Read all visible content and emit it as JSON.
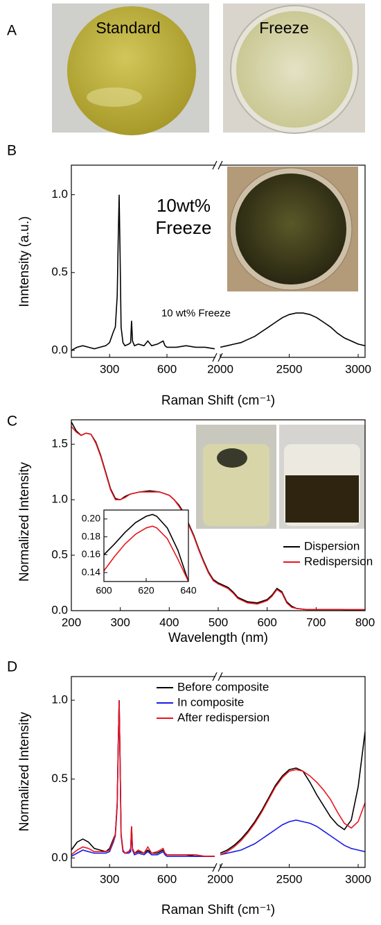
{
  "figure": {
    "panel_labels": [
      "A",
      "B",
      "C",
      "D"
    ],
    "photo_captions": [
      "Standard",
      "Freeze"
    ]
  },
  "chart_data": [
    {
      "type": "line",
      "y_label": "Inntensity (a.u.)",
      "x_label": "Raman Shift (cm⁻¹)",
      "annotations": [
        "10wt%",
        "Freeze",
        "10 wt% Freeze"
      ],
      "x_segments": [
        {
          "xlim": [
            100,
            850
          ],
          "xticks": [
            300,
            600
          ]
        },
        {
          "xlim": [
            2000,
            3050
          ],
          "xticks": [
            2000,
            2500,
            3000
          ]
        }
      ],
      "ylim": [
        -0.045,
        1.19
      ],
      "yticks": [
        {
          "value": 0,
          "label": "0.0"
        },
        {
          "value": 0.5,
          "label": "0.5"
        },
        {
          "value": 1,
          "label": "1.0"
        }
      ],
      "x": [
        100,
        130,
        160,
        190,
        220,
        250,
        280,
        300,
        320,
        330,
        340,
        345,
        350,
        355,
        360,
        370,
        380,
        400,
        410,
        415,
        420,
        430,
        450,
        480,
        500,
        520,
        550,
        580,
        590,
        600,
        650,
        700,
        750,
        800,
        850,
        2000,
        2050,
        2100,
        2150,
        2200,
        2250,
        2300,
        2350,
        2400,
        2450,
        2500,
        2550,
        2600,
        2650,
        2700,
        2750,
        2800,
        2850,
        2900,
        2950,
        3000,
        3050
      ],
      "color": "#000000",
      "values": [
        0.0,
        0.02,
        0.03,
        0.02,
        0.01,
        0.02,
        0.03,
        0.05,
        0.12,
        0.15,
        0.35,
        0.7,
        1.0,
        0.6,
        0.15,
        0.05,
        0.03,
        0.04,
        0.05,
        0.19,
        0.06,
        0.03,
        0.04,
        0.03,
        0.06,
        0.03,
        0.04,
        0.06,
        0.03,
        0.02,
        0.02,
        0.03,
        0.02,
        0.02,
        0.01,
        0.02,
        0.03,
        0.04,
        0.05,
        0.07,
        0.09,
        0.12,
        0.15,
        0.18,
        0.21,
        0.23,
        0.24,
        0.24,
        0.23,
        0.21,
        0.18,
        0.15,
        0.11,
        0.08,
        0.06,
        0.04,
        0.03
      ]
    },
    {
      "type": "line",
      "y_label": "Normalized Intensity",
      "x_label": "Wavelength (nm)",
      "legend": "lower right",
      "xlim": [
        200,
        800
      ],
      "xticks": [
        200,
        300,
        400,
        500,
        600,
        700,
        800
      ],
      "ylim": [
        0,
        1.72
      ],
      "yticks": [
        {
          "value": 0,
          "label": "0.0"
        },
        {
          "value": 0.5,
          "label": "0.5"
        },
        {
          "value": 1,
          "label": "1.0"
        },
        {
          "value": 1.5,
          "label": "1.5"
        }
      ],
      "x": [
        200,
        210,
        220,
        230,
        240,
        250,
        260,
        270,
        280,
        290,
        300,
        310,
        320,
        340,
        360,
        380,
        400,
        410,
        420,
        430,
        440,
        450,
        460,
        470,
        480,
        490,
        500,
        510,
        520,
        530,
        540,
        560,
        580,
        600,
        610,
        620,
        630,
        640,
        650,
        660,
        680,
        700,
        750,
        800
      ],
      "series": [
        {
          "name": "Dispersion",
          "color": "#000000",
          "values": [
            1.7,
            1.62,
            1.58,
            1.6,
            1.59,
            1.52,
            1.4,
            1.25,
            1.1,
            1.01,
            1.0,
            1.03,
            1.05,
            1.07,
            1.08,
            1.07,
            1.04,
            1.0,
            0.95,
            0.88,
            0.78,
            0.68,
            0.56,
            0.45,
            0.35,
            0.28,
            0.25,
            0.23,
            0.21,
            0.17,
            0.12,
            0.08,
            0.07,
            0.1,
            0.14,
            0.2,
            0.17,
            0.08,
            0.04,
            0.02,
            0.01,
            0.01,
            0.01,
            0.0
          ]
        },
        {
          "name": "Redispersion",
          "color": "#e8141c",
          "values": [
            1.66,
            1.61,
            1.58,
            1.6,
            1.59,
            1.51,
            1.39,
            1.24,
            1.09,
            1.0,
            1.0,
            1.02,
            1.05,
            1.07,
            1.07,
            1.07,
            1.04,
            1.0,
            0.94,
            0.87,
            0.77,
            0.67,
            0.55,
            0.44,
            0.34,
            0.27,
            0.24,
            0.22,
            0.2,
            0.16,
            0.11,
            0.07,
            0.06,
            0.09,
            0.13,
            0.19,
            0.16,
            0.07,
            0.03,
            0.02,
            0.01,
            0.01,
            0.01,
            0.01
          ]
        }
      ]
    },
    {
      "type": "line",
      "xlim": [
        600,
        640
      ],
      "xticks": [
        600,
        620,
        640
      ],
      "ylim": [
        0.13,
        0.21
      ],
      "yticks": [
        0.14,
        0.16,
        0.18,
        {
          "value": 0.2,
          "label": "0.20"
        }
      ],
      "x": [
        600,
        605,
        610,
        615,
        620,
        623,
        625,
        630,
        635,
        640
      ],
      "series": [
        {
          "color": "#000000",
          "values": [
            0.16,
            0.172,
            0.185,
            0.196,
            0.203,
            0.205,
            0.203,
            0.19,
            0.165,
            0.13
          ]
        },
        {
          "color": "#e8141c",
          "values": [
            0.142,
            0.158,
            0.172,
            0.183,
            0.19,
            0.192,
            0.19,
            0.178,
            0.155,
            0.13
          ]
        }
      ]
    },
    {
      "type": "line",
      "y_label": "Normalized Intensity",
      "x_label": "Raman Shift (cm⁻¹)",
      "legend": "upper center",
      "x_segments": [
        {
          "xlim": [
            100,
            850
          ],
          "xticks": [
            300,
            600
          ]
        },
        {
          "xlim": [
            2000,
            3050
          ],
          "xticks": [
            2000,
            2500,
            3000
          ]
        }
      ],
      "ylim": [
        -0.06,
        1.15
      ],
      "yticks": [
        {
          "value": 0,
          "label": "0.0"
        },
        {
          "value": 0.5,
          "label": "0.5"
        },
        {
          "value": 1,
          "label": "1.0"
        }
      ],
      "x": [
        100,
        130,
        160,
        190,
        220,
        250,
        280,
        300,
        320,
        330,
        340,
        345,
        350,
        355,
        360,
        370,
        380,
        400,
        410,
        415,
        420,
        430,
        450,
        480,
        500,
        520,
        550,
        580,
        590,
        600,
        650,
        700,
        750,
        800,
        850,
        2000,
        2050,
        2100,
        2150,
        2200,
        2250,
        2300,
        2350,
        2400,
        2450,
        2500,
        2550,
        2600,
        2650,
        2700,
        2750,
        2800,
        2850,
        2900,
        2950,
        3000,
        3050
      ],
      "series": [
        {
          "name": "Before composite",
          "color": "#000000",
          "values": [
            0.05,
            0.1,
            0.12,
            0.1,
            0.06,
            0.05,
            0.04,
            0.06,
            0.12,
            0.15,
            0.35,
            0.7,
            1.0,
            0.6,
            0.15,
            0.05,
            0.03,
            0.04,
            0.05,
            0.2,
            0.06,
            0.03,
            0.04,
            0.03,
            0.05,
            0.03,
            0.03,
            0.05,
            0.03,
            0.02,
            0.02,
            0.02,
            0.01,
            0.01,
            0.01,
            0.03,
            0.05,
            0.08,
            0.12,
            0.17,
            0.23,
            0.3,
            0.38,
            0.46,
            0.52,
            0.56,
            0.57,
            0.55,
            0.48,
            0.4,
            0.33,
            0.26,
            0.21,
            0.18,
            0.24,
            0.45,
            0.8
          ]
        },
        {
          "name": "In composite",
          "color": "#1a1ae6",
          "values": [
            0.01,
            0.03,
            0.05,
            0.04,
            0.03,
            0.03,
            0.03,
            0.04,
            0.1,
            0.14,
            0.33,
            0.7,
            1.0,
            0.6,
            0.14,
            0.04,
            0.03,
            0.03,
            0.04,
            0.18,
            0.05,
            0.02,
            0.03,
            0.02,
            0.04,
            0.02,
            0.02,
            0.04,
            0.02,
            0.01,
            0.01,
            0.01,
            0.01,
            0.01,
            0.01,
            0.02,
            0.03,
            0.04,
            0.05,
            0.07,
            0.09,
            0.12,
            0.15,
            0.18,
            0.21,
            0.23,
            0.24,
            0.23,
            0.22,
            0.2,
            0.17,
            0.14,
            0.11,
            0.08,
            0.06,
            0.05,
            0.04
          ]
        },
        {
          "name": "After redispersion",
          "color": "#e8141c",
          "values": [
            0.02,
            0.05,
            0.07,
            0.06,
            0.04,
            0.04,
            0.04,
            0.05,
            0.11,
            0.15,
            0.34,
            0.7,
            1.0,
            0.61,
            0.15,
            0.05,
            0.03,
            0.04,
            0.06,
            0.2,
            0.06,
            0.03,
            0.05,
            0.03,
            0.07,
            0.03,
            0.04,
            0.06,
            0.03,
            0.02,
            0.02,
            0.02,
            0.02,
            0.01,
            0.01,
            0.02,
            0.04,
            0.07,
            0.11,
            0.16,
            0.22,
            0.29,
            0.37,
            0.45,
            0.51,
            0.55,
            0.56,
            0.55,
            0.52,
            0.48,
            0.43,
            0.37,
            0.29,
            0.22,
            0.19,
            0.23,
            0.35
          ]
        }
      ]
    }
  ]
}
